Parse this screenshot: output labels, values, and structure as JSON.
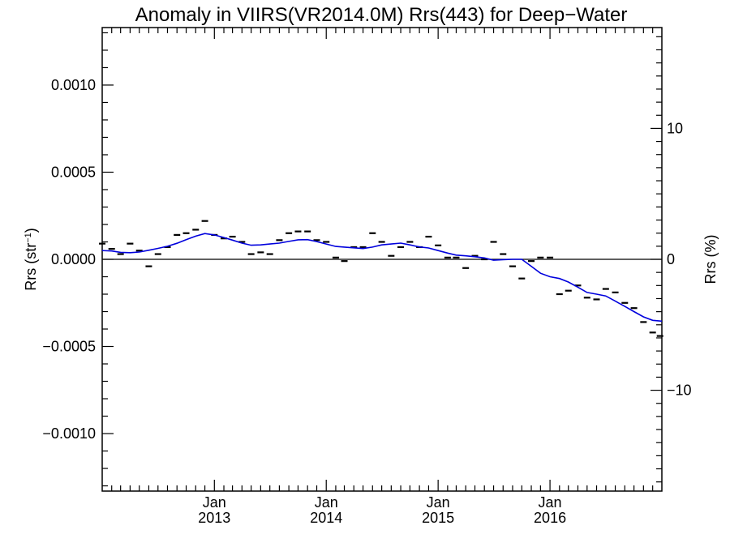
{
  "chart_data": {
    "type": "line",
    "title": "Anomaly in VIIRS(VR2014.0M) Rrs(443) for Deep−Water",
    "ylabel_base": "Rrs (str",
    "ylabel_sup": "−1",
    "ylabel_close": ")",
    "ylabel_right": "Rrs (%)",
    "xlim": [
      "2012-01-01",
      "2016-12-31"
    ],
    "ylim": [
      -0.00133,
      0.00133
    ],
    "ylim_right": [
      -17.7,
      17.7
    ],
    "x_ticks": [
      {
        "date": "2013-01-01",
        "month": "Jan",
        "year": "2013"
      },
      {
        "date": "2014-01-01",
        "month": "Jan",
        "year": "2014"
      },
      {
        "date": "2015-01-01",
        "month": "Jan",
        "year": "2015"
      },
      {
        "date": "2016-01-01",
        "month": "Jan",
        "year": "2016"
      }
    ],
    "y_ticks": [
      {
        "value": 0.001,
        "label": "0.0010"
      },
      {
        "value": 0.0005,
        "label": "0.0005"
      },
      {
        "value": 0.0,
        "label": "0.0000"
      },
      {
        "value": -0.0005,
        "label": "−0.0005"
      },
      {
        "value": -0.001,
        "label": "−0.0010"
      }
    ],
    "y_ticks_right": [
      {
        "value": 10,
        "label": "10"
      },
      {
        "value": 0,
        "label": "0"
      },
      {
        "value": -10,
        "label": "−10"
      }
    ],
    "zero_line": true,
    "series": [
      {
        "style": "dash-markers",
        "color": "#000000",
        "points": [
          [
            "2012-01-01",
            9e-05
          ],
          [
            "2012-02-01",
            6e-05
          ],
          [
            "2012-03-01",
            3e-05
          ],
          [
            "2012-04-01",
            9e-05
          ],
          [
            "2012-05-01",
            5e-05
          ],
          [
            "2012-06-01",
            -4e-05
          ],
          [
            "2012-07-01",
            3e-05
          ],
          [
            "2012-08-01",
            7e-05
          ],
          [
            "2012-09-01",
            0.00014
          ],
          [
            "2012-10-01",
            0.00015
          ],
          [
            "2012-11-01",
            0.00017
          ],
          [
            "2012-12-01",
            0.00022
          ],
          [
            "2013-01-01",
            0.00014
          ],
          [
            "2013-02-01",
            0.00012
          ],
          [
            "2013-03-01",
            0.00013
          ],
          [
            "2013-04-01",
            0.0001
          ],
          [
            "2013-05-01",
            3e-05
          ],
          [
            "2013-06-01",
            4e-05
          ],
          [
            "2013-07-01",
            3e-05
          ],
          [
            "2013-08-01",
            0.00011
          ],
          [
            "2013-09-01",
            0.00015
          ],
          [
            "2013-10-01",
            0.00016
          ],
          [
            "2013-11-01",
            0.00016
          ],
          [
            "2013-12-01",
            0.00011
          ],
          [
            "2014-01-01",
            0.0001
          ],
          [
            "2014-02-01",
            1e-05
          ],
          [
            "2014-03-01",
            -1e-05
          ],
          [
            "2014-04-01",
            7e-05
          ],
          [
            "2014-05-01",
            7e-05
          ],
          [
            "2014-06-01",
            0.00015
          ],
          [
            "2014-07-01",
            0.0001
          ],
          [
            "2014-08-01",
            2e-05
          ],
          [
            "2014-09-01",
            7e-05
          ],
          [
            "2014-10-01",
            0.0001
          ],
          [
            "2014-11-01",
            7e-05
          ],
          [
            "2014-12-01",
            0.00013
          ],
          [
            "2015-01-01",
            8e-05
          ],
          [
            "2015-02-01",
            1e-05
          ],
          [
            "2015-03-01",
            1e-05
          ],
          [
            "2015-04-01",
            -5e-05
          ],
          [
            "2015-05-01",
            2e-05
          ],
          [
            "2015-06-01",
            0.0
          ],
          [
            "2015-07-01",
            0.0001
          ],
          [
            "2015-08-01",
            3e-05
          ],
          [
            "2015-09-01",
            -4e-05
          ],
          [
            "2015-10-01",
            -0.00011
          ],
          [
            "2015-11-01",
            -1e-05
          ],
          [
            "2015-12-01",
            1e-05
          ],
          [
            "2016-01-01",
            1e-05
          ],
          [
            "2016-02-01",
            -0.0002
          ],
          [
            "2016-03-01",
            -0.00018
          ],
          [
            "2016-04-01",
            -0.00015
          ],
          [
            "2016-05-01",
            -0.00022
          ],
          [
            "2016-06-01",
            -0.00023
          ],
          [
            "2016-07-01",
            -0.00017
          ],
          [
            "2016-08-01",
            -0.00019
          ],
          [
            "2016-09-01",
            -0.00025
          ],
          [
            "2016-10-01",
            -0.00028
          ],
          [
            "2016-11-01",
            -0.00036
          ],
          [
            "2016-12-01",
            -0.00042
          ],
          [
            "2016-12-25",
            -0.00044
          ]
        ]
      },
      {
        "style": "line",
        "color": "#0000dd",
        "points": [
          [
            "2012-01-01",
            5e-05
          ],
          [
            "2012-02-01",
            4.8e-05
          ],
          [
            "2012-03-01",
            4e-05
          ],
          [
            "2012-04-01",
            3.8e-05
          ],
          [
            "2012-05-01",
            4.2e-05
          ],
          [
            "2012-06-01",
            5.2e-05
          ],
          [
            "2012-07-01",
            6.3e-05
          ],
          [
            "2012-08-01",
            7.5e-05
          ],
          [
            "2012-09-01",
            9.2e-05
          ],
          [
            "2012-10-01",
            0.000113
          ],
          [
            "2012-11-01",
            0.000133
          ],
          [
            "2012-12-01",
            0.000148
          ],
          [
            "2013-01-01",
            0.00014
          ],
          [
            "2013-02-01",
            0.000125
          ],
          [
            "2013-03-01",
            0.00011
          ],
          [
            "2013-04-01",
            9.3e-05
          ],
          [
            "2013-05-01",
            8.1e-05
          ],
          [
            "2013-06-01",
            8.3e-05
          ],
          [
            "2013-07-01",
            8.8e-05
          ],
          [
            "2013-08-01",
            9.3e-05
          ],
          [
            "2013-09-01",
            0.000103
          ],
          [
            "2013-10-01",
            0.000112
          ],
          [
            "2013-11-01",
            0.000113
          ],
          [
            "2013-12-01",
            0.000102
          ],
          [
            "2014-01-01",
            8.8e-05
          ],
          [
            "2014-02-01",
            7.4e-05
          ],
          [
            "2014-03-01",
            7e-05
          ],
          [
            "2014-04-01",
            6.6e-05
          ],
          [
            "2014-05-01",
            6.2e-05
          ],
          [
            "2014-06-01",
            7e-05
          ],
          [
            "2014-07-01",
            8.3e-05
          ],
          [
            "2014-08-01",
            8.8e-05
          ],
          [
            "2014-09-01",
            9.3e-05
          ],
          [
            "2014-10-01",
            8.3e-05
          ],
          [
            "2014-11-01",
            7.1e-05
          ],
          [
            "2014-12-01",
            6.5e-05
          ],
          [
            "2015-01-01",
            5e-05
          ],
          [
            "2015-02-01",
            3.6e-05
          ],
          [
            "2015-03-01",
            2.4e-05
          ],
          [
            "2015-04-01",
            2e-05
          ],
          [
            "2015-05-01",
            1.5e-05
          ],
          [
            "2015-06-01",
            8e-06
          ],
          [
            "2015-07-01",
            -5e-06
          ],
          [
            "2015-08-01",
            -2e-06
          ],
          [
            "2015-09-01",
            0.0
          ],
          [
            "2015-10-01",
            0.0
          ],
          [
            "2015-11-01",
            -4e-05
          ],
          [
            "2015-12-01",
            -8e-05
          ],
          [
            "2016-01-01",
            -0.0001
          ],
          [
            "2016-02-01",
            -0.00011
          ],
          [
            "2016-03-01",
            -0.00013
          ],
          [
            "2016-04-01",
            -0.00016
          ],
          [
            "2016-05-01",
            -0.00019
          ],
          [
            "2016-06-01",
            -0.0002
          ],
          [
            "2016-07-01",
            -0.00021
          ],
          [
            "2016-08-01",
            -0.00024
          ],
          [
            "2016-09-01",
            -0.00027
          ],
          [
            "2016-10-01",
            -0.0003
          ],
          [
            "2016-11-01",
            -0.00033
          ],
          [
            "2016-12-01",
            -0.00035
          ],
          [
            "2016-12-31",
            -0.000355
          ]
        ]
      }
    ]
  }
}
